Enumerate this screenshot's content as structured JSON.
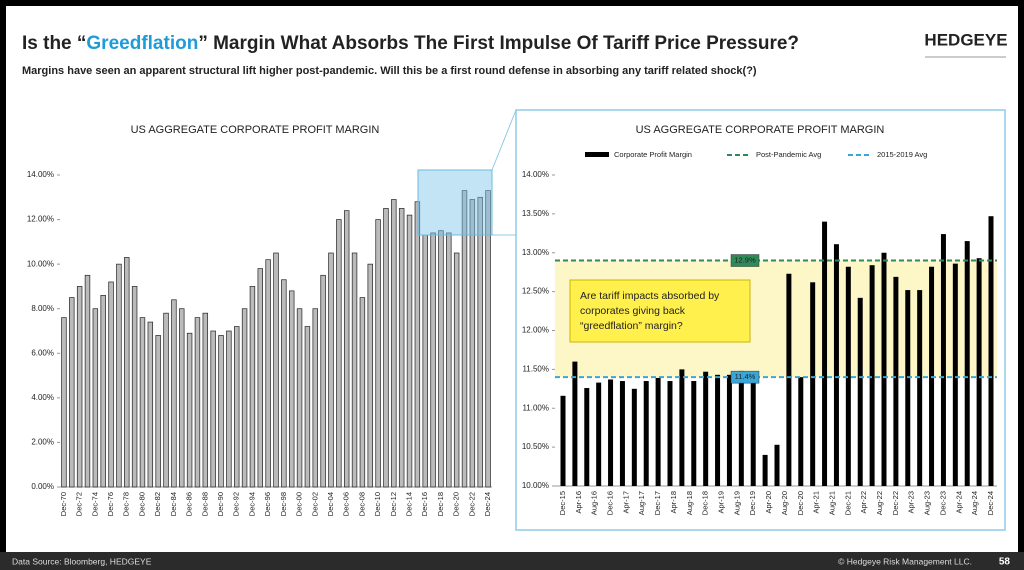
{
  "header": {
    "title_parts": [
      "Is the “",
      "Greedflation",
      "” Margin What Absorbs The First Impulse Of Tariff Price Pressure?"
    ],
    "logo": "HEDGEYE",
    "subtitle": "Margins have seen an apparent structural lift higher post-pandemic.  Will this be a first round defense in absorbing any tariff related shock(?)"
  },
  "chart_data": [
    {
      "type": "bar",
      "title": "US AGGREGATE CORPORATE PROFIT MARGIN",
      "color": "#bbbbbb",
      "edgecolor": "#222222",
      "categories": [
        "Dec-70",
        null,
        "Dec-72",
        null,
        "Dec-74",
        null,
        "Dec-76",
        null,
        "Dec-78",
        null,
        "Dec-80",
        null,
        "Dec-82",
        null,
        "Dec-84",
        null,
        "Dec-86",
        null,
        "Dec-88",
        null,
        "Dec-90",
        null,
        "Dec-92",
        null,
        "Dec-94",
        null,
        "Dec-96",
        null,
        "Dec-98",
        null,
        "Dec-00",
        null,
        "Dec-02",
        null,
        "Dec-04",
        null,
        "Dec-06",
        null,
        "Dec-08",
        null,
        "Dec-10",
        null,
        "Dec-12",
        null,
        "Dec-14",
        null,
        "Dec-16",
        null,
        "Dec-18",
        null,
        "Dec-20",
        null,
        "Dec-22",
        null,
        "Dec-24"
      ],
      "values": [
        7.6,
        8.5,
        9.0,
        9.5,
        8.0,
        8.6,
        9.2,
        10.0,
        10.3,
        9.0,
        7.6,
        7.4,
        6.8,
        7.8,
        8.4,
        8.0,
        6.9,
        7.6,
        7.8,
        7.0,
        6.8,
        7.0,
        7.2,
        8.0,
        9.0,
        9.8,
        10.2,
        10.5,
        9.3,
        8.8,
        8.0,
        7.2,
        8.0,
        9.5,
        10.5,
        12.0,
        12.4,
        10.5,
        8.5,
        10.0,
        12.0,
        12.5,
        12.9,
        12.5,
        12.2,
        12.8,
        11.3,
        11.4,
        11.5,
        11.4,
        10.5,
        13.3,
        12.9,
        13.0,
        13.3
      ],
      "ylim": [
        0,
        14
      ],
      "yticks": [
        {
          "value": 0,
          "label": "0.00%"
        },
        {
          "value": 2,
          "label": "2.00%"
        },
        {
          "value": 4,
          "label": "4.00%"
        },
        {
          "value": 6,
          "label": "6.00%"
        },
        {
          "value": 8,
          "label": "8.00%"
        },
        {
          "value": 10,
          "label": "10.00%"
        },
        {
          "value": 12,
          "label": "12.00%"
        },
        {
          "value": 14,
          "label": "14.00%"
        }
      ]
    },
    {
      "type": "bar",
      "title": "US AGGREGATE CORPORATE PROFIT MARGIN",
      "x": [
        "Dec-15",
        "Mar-16",
        "Jun-16",
        "Sep-16",
        "Dec-16",
        "Mar-17",
        "Jun-17",
        "Sep-17",
        "Dec-17",
        "Mar-18",
        "Jun-18",
        "Sep-18",
        "Dec-18",
        "Mar-19",
        "Jun-19",
        "Sep-19",
        "Dec-19",
        "Mar-20",
        "Jun-20",
        "Sep-20",
        "Dec-20",
        "Mar-21",
        "Jun-21",
        "Sep-21",
        "Dec-21",
        "Mar-22",
        "Jun-22",
        "Sep-22",
        "Dec-22",
        "Mar-23",
        "Jun-23",
        "Sep-23",
        "Dec-23",
        "Mar-24",
        "Jun-24",
        "Sep-24",
        "Dec-24"
      ],
      "xticks": [
        "Dec-15",
        "Apr-16",
        "Aug-16",
        "Dec-16",
        "Apr-17",
        "Aug-17",
        "Dec-17",
        "Apr-18",
        "Aug-18",
        "Dec-18",
        "Apr-19",
        "Aug-19",
        "Dec-19",
        "Apr-20",
        "Aug-20",
        "Dec-20",
        "Apr-21",
        "Aug-21",
        "Dec-21",
        "Apr-22",
        "Aug-22",
        "Dec-22",
        "Apr-23",
        "Aug-23",
        "Dec-23",
        "Apr-24",
        "Aug-24",
        "Dec-24"
      ],
      "series": [
        {
          "name": "Corporate Profit Margin",
          "color": "#000000",
          "values": [
            11.16,
            11.6,
            11.26,
            11.33,
            11.37,
            11.35,
            11.25,
            11.35,
            11.39,
            11.35,
            11.5,
            11.35,
            11.47,
            11.43,
            11.43,
            11.48,
            11.37,
            10.4,
            10.53,
            12.73,
            11.4,
            12.62,
            13.4,
            13.11,
            12.82,
            12.42,
            12.84,
            13.0,
            12.69,
            12.52,
            12.52,
            12.82,
            13.24,
            12.86,
            13.15,
            12.93,
            13.47
          ]
        }
      ],
      "reference_lines": [
        {
          "name": "Post-Pandemic Avg",
          "color": "#2e8b57",
          "value": 12.9,
          "value_label": "12.9%"
        },
        {
          "name": "2015-2019 Avg",
          "color": "#3aa6d8",
          "value": 11.4,
          "value_label": "11.4%"
        }
      ],
      "annotation": [
        "Are tariff impacts absorbed by",
        "corporates giving back",
        "“greedflation” margin?"
      ],
      "ylim": [
        10,
        14
      ],
      "yticks": [
        {
          "value": 10,
          "label": "10.00%"
        },
        {
          "value": 10.5,
          "label": "10.50%"
        },
        {
          "value": 11,
          "label": "11.00%"
        },
        {
          "value": 11.5,
          "label": "11.50%"
        },
        {
          "value": 12,
          "label": "12.00%"
        },
        {
          "value": 12.5,
          "label": "12.50%"
        },
        {
          "value": 13,
          "label": "13.00%"
        },
        {
          "value": 13.5,
          "label": "13.50%"
        },
        {
          "value": 14,
          "label": "14.00%"
        }
      ]
    }
  ],
  "footer": {
    "source": "Data Source: Bloomberg, HEDGEYE",
    "copyright": "© Hedgeye Risk Management LLC.",
    "page": "58"
  }
}
